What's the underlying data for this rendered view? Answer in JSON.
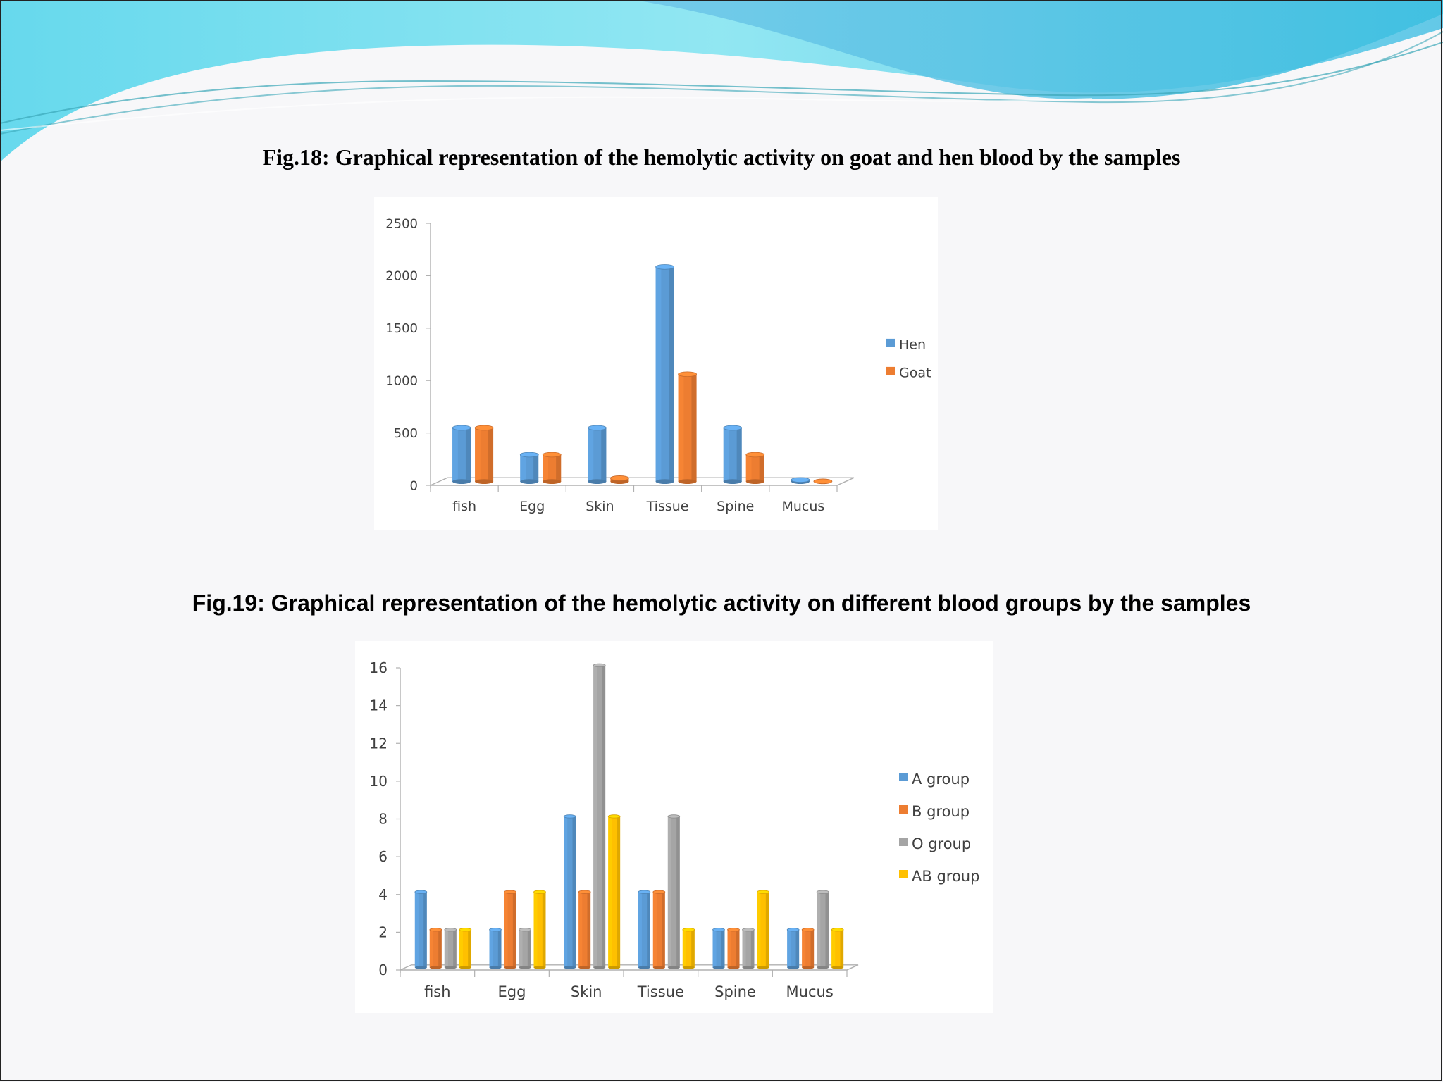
{
  "figures": {
    "fig18_title": "Fig.18: Graphical representation of the hemolytic activity on goat and hen blood by the samples",
    "fig19_title": "Fig.19: Graphical representation of the hemolytic activity on different blood groups by the samples"
  },
  "colors": {
    "blue": "#5b9bd5",
    "orange": "#ed7d31",
    "gray": "#a5a5a5",
    "yellow": "#ffc000",
    "wave_light": "#8fe8f2",
    "wave_mid": "#4fc3e0"
  },
  "chart_data": [
    {
      "type": "bar",
      "categories": [
        "fish",
        "Egg",
        "Skin",
        "Tissue",
        "Spine",
        "Mucus"
      ],
      "series": [
        {
          "name": "Hen",
          "values": [
            512,
            256,
            512,
            2048,
            512,
            16
          ],
          "color": "#5b9bd5"
        },
        {
          "name": "Goat",
          "values": [
            512,
            256,
            32,
            1024,
            256,
            2
          ],
          "color": "#ed7d31"
        }
      ],
      "yticks": [
        "0",
        "500",
        "1000",
        "1500",
        "2000",
        "2500"
      ],
      "ylim": [
        0,
        2500
      ],
      "legend": "right",
      "grid": false
    },
    {
      "type": "bar",
      "categories": [
        "fish",
        "Egg",
        "Skin",
        "Tissue",
        "Spine",
        "Mucus"
      ],
      "series": [
        {
          "name": "A group",
          "values": [
            4,
            2,
            8,
            4,
            2,
            2
          ],
          "color": "#5b9bd5"
        },
        {
          "name": "B group",
          "values": [
            2,
            4,
            4,
            4,
            2,
            2
          ],
          "color": "#ed7d31"
        },
        {
          "name": "O group",
          "values": [
            2,
            2,
            16,
            8,
            2,
            4
          ],
          "color": "#a5a5a5"
        },
        {
          "name": "AB  group",
          "values": [
            2,
            4,
            8,
            2,
            4,
            2
          ],
          "color": "#ffc000"
        }
      ],
      "yticks": [
        "0",
        "2",
        "4",
        "6",
        "8",
        "10",
        "12",
        "14",
        "16"
      ],
      "ylim": [
        0,
        16
      ],
      "legend": "right",
      "grid": false
    }
  ]
}
